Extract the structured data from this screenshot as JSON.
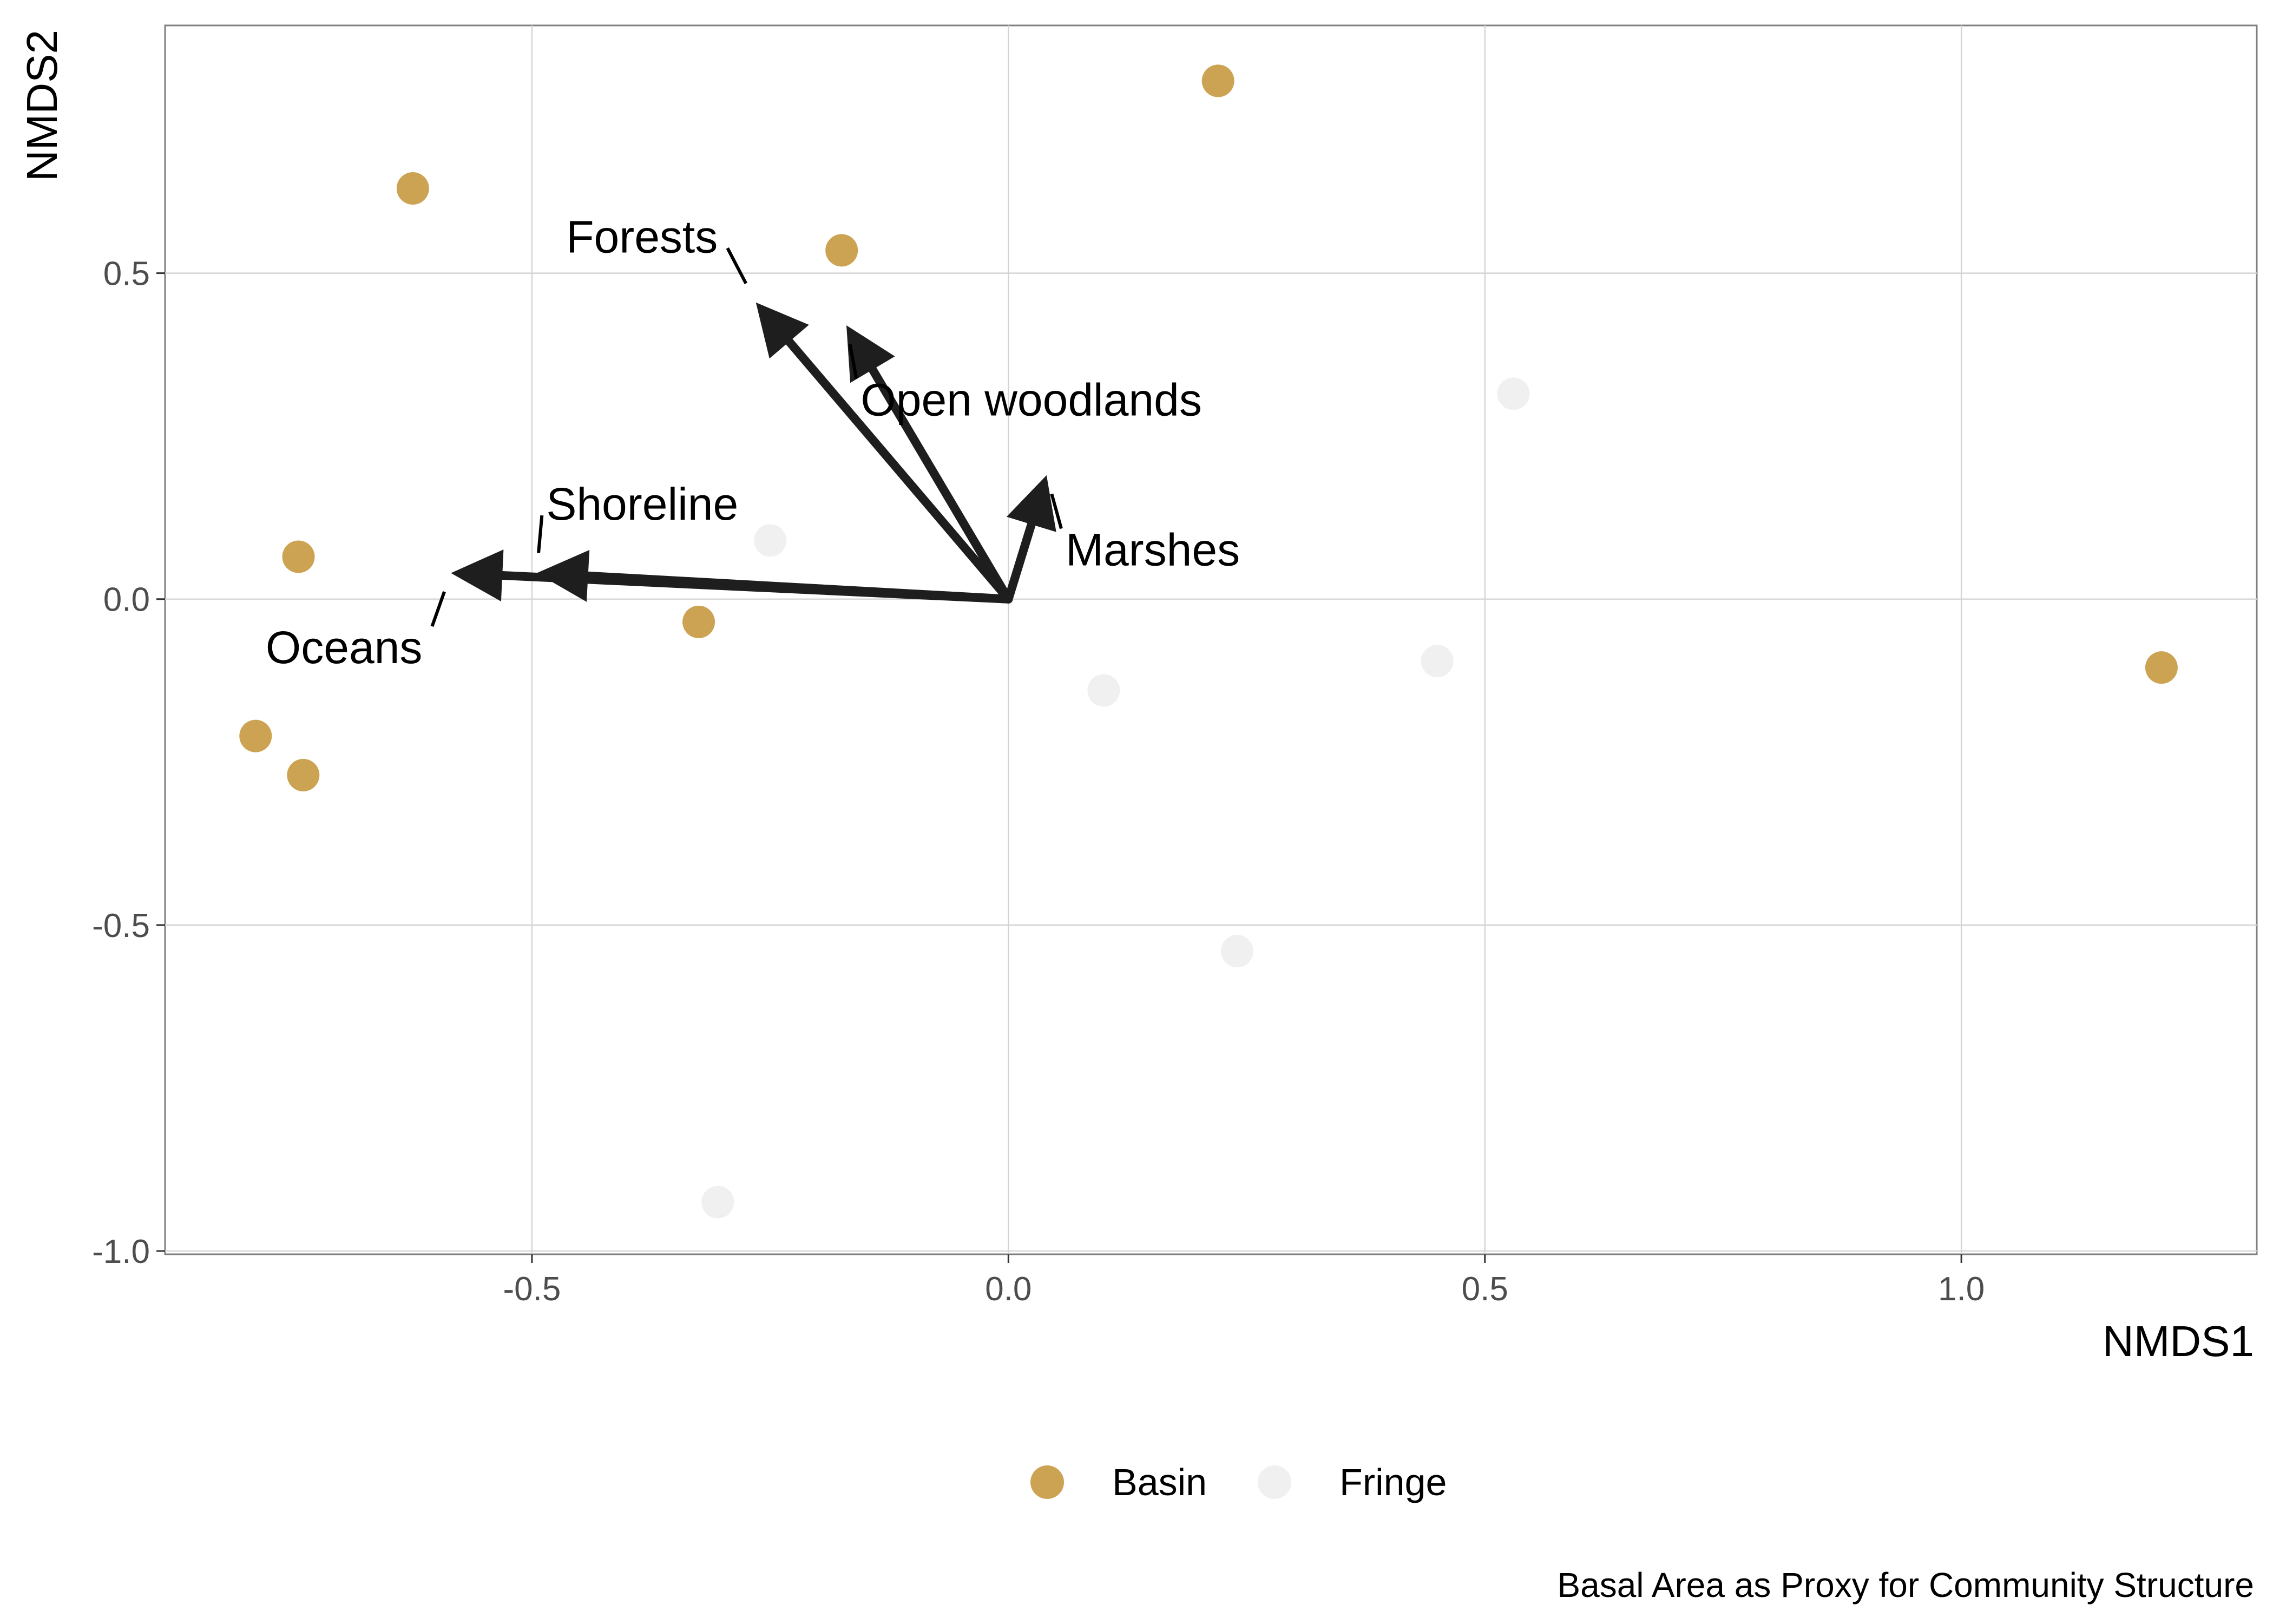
{
  "chart_data": {
    "type": "scatter",
    "title": "",
    "xlabel": "NMDS1",
    "ylabel": "NMDS2",
    "caption": "Basal Area as Proxy for Community Structure",
    "xlim": [
      -0.885,
      1.31
    ],
    "ylim": [
      -1.005,
      0.88
    ],
    "x_ticks": [
      -0.5,
      0.0,
      0.5,
      1.0
    ],
    "x_tick_labels": [
      "-0.5",
      "0.0",
      "0.5",
      "1.0"
    ],
    "y_ticks": [
      -1.0,
      -0.5,
      0.0,
      0.5
    ],
    "y_tick_labels": [
      "-1.0",
      "-0.5",
      "0.0",
      "0.5"
    ],
    "grid": true,
    "legend_position": "bottom",
    "series": [
      {
        "name": "Basin",
        "color": "#cca352",
        "points": [
          {
            "x": 0.22,
            "y": 0.795
          },
          {
            "x": -0.625,
            "y": 0.63
          },
          {
            "x": -0.175,
            "y": 0.535
          },
          {
            "x": -0.745,
            "y": 0.065
          },
          {
            "x": -0.325,
            "y": -0.035
          },
          {
            "x": -0.79,
            "y": -0.21
          },
          {
            "x": -0.74,
            "y": -0.27
          },
          {
            "x": 1.21,
            "y": -0.105
          }
        ]
      },
      {
        "name": "Fringe",
        "color": "#f0f0f0",
        "points": [
          {
            "x": 0.53,
            "y": 0.315
          },
          {
            "x": -0.25,
            "y": 0.09
          },
          {
            "x": 0.45,
            "y": -0.095
          },
          {
            "x": 0.1,
            "y": -0.14
          },
          {
            "x": 0.24,
            "y": -0.54
          },
          {
            "x": -0.305,
            "y": -0.925
          }
        ]
      }
    ],
    "vectors": [
      {
        "label": "Forests",
        "x": -0.265,
        "y": 0.455,
        "label_x": -0.305,
        "label_y": 0.555,
        "label_anchor": "end"
      },
      {
        "label": "Open woodlands",
        "x": -0.17,
        "y": 0.42,
        "label_x": -0.155,
        "label_y": 0.305,
        "label_anchor": "start"
      },
      {
        "label": "Marshes",
        "x": 0.04,
        "y": 0.19,
        "label_x": 0.06,
        "label_y": 0.075,
        "label_anchor": "start"
      },
      {
        "label": "Shoreline",
        "x": -0.495,
        "y": 0.04,
        "label_x": -0.485,
        "label_y": 0.145,
        "label_anchor": "start"
      },
      {
        "label": "Oceans",
        "x": -0.585,
        "y": 0.04,
        "label_x": -0.615,
        "label_y": -0.075,
        "label_anchor": "end"
      }
    ]
  }
}
